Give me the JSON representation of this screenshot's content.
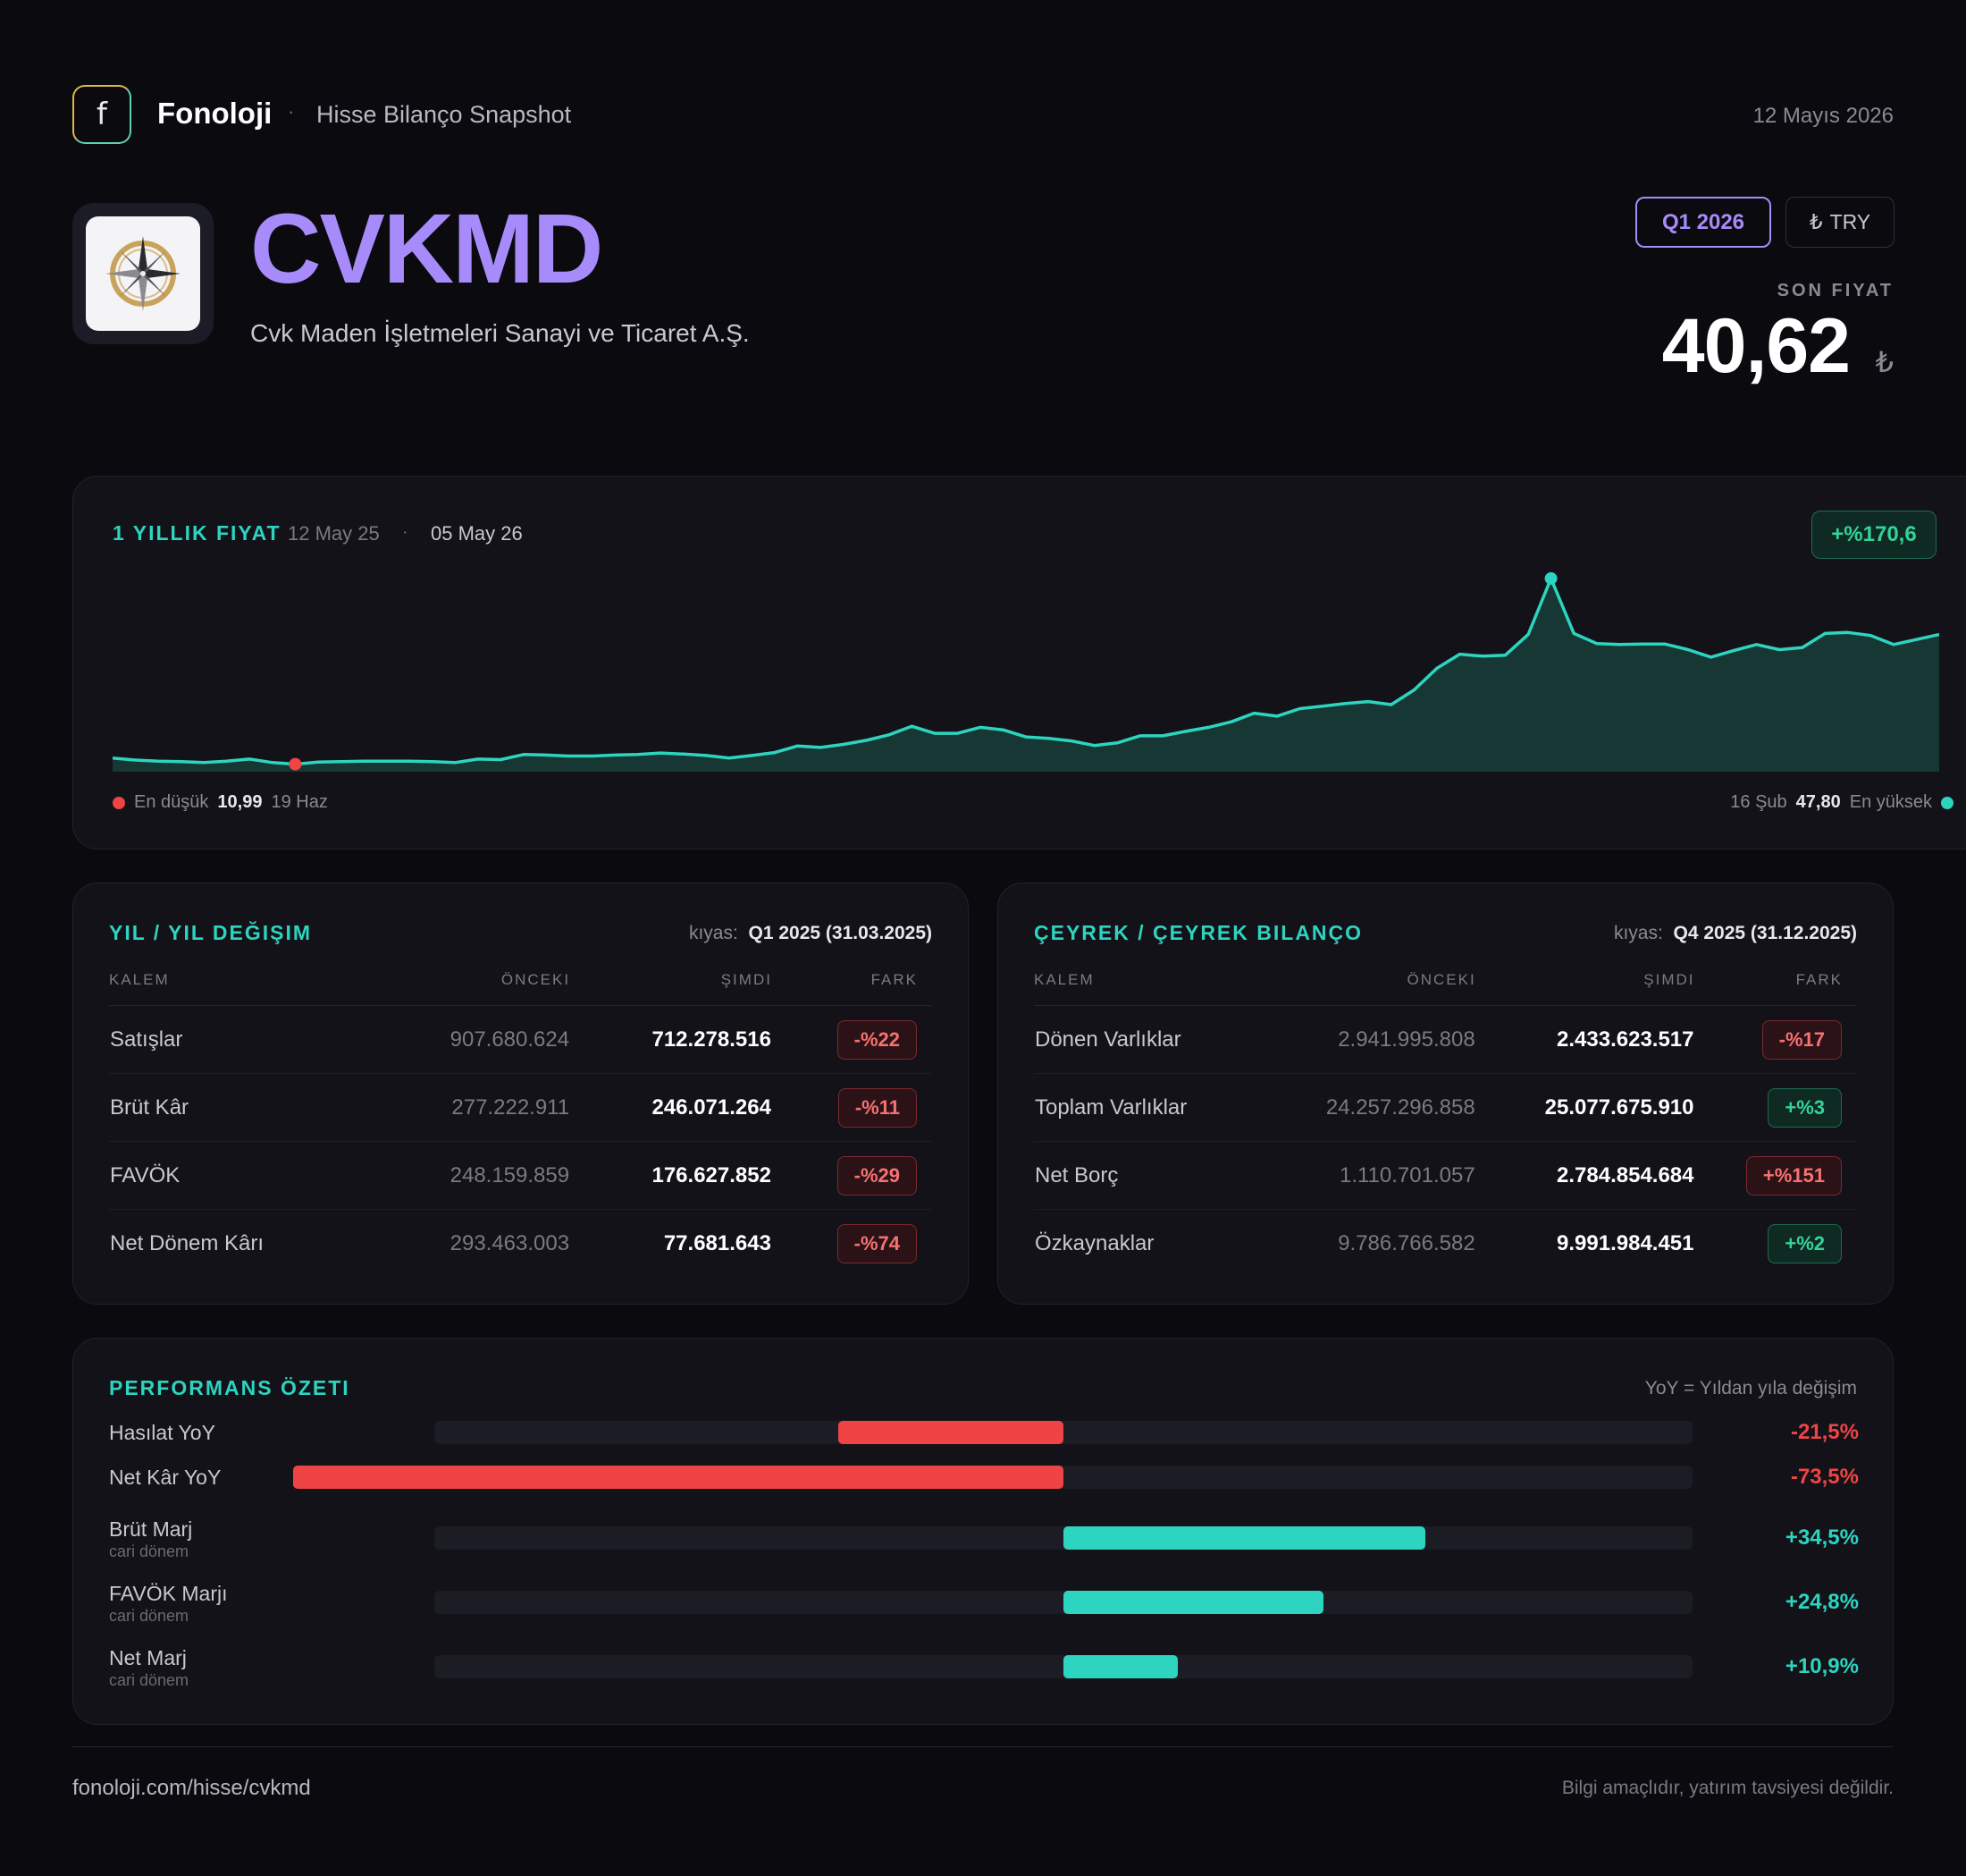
{
  "header": {
    "logo_letter": "f",
    "brand": "Fonoloji",
    "separator": "·",
    "subtitle": "Hisse Bilanço Snapshot",
    "date": "12 Mayıs 2026"
  },
  "stock": {
    "ticker": "CVKMD",
    "company": "Cvk Maden İşletmeleri Sanayi ve Ticaret A.Ş.",
    "period": "Q1 2026",
    "currency_symbol": "₺",
    "currency": "TRY",
    "price_label": "SON FIYAT",
    "price": "40,62",
    "price_unit": "₺"
  },
  "price_chart": {
    "title": "1 YILLIK FIYAT",
    "from": "12 May 25",
    "separator": "·",
    "to": "05 May 26",
    "change": "+%170,6",
    "low_label": "En düşük",
    "low_value": "10,99",
    "low_date": "19 Haz",
    "high_date": "16 Şub",
    "high_value": "47,80",
    "high_label": "En yüksek",
    "colors": {
      "line": "#2dd4bf",
      "fill": "#163733",
      "low": "#ef4444",
      "high": "#2dd4bf"
    }
  },
  "chart_data": {
    "type": "area",
    "title": "1 YILLIK FIYAT",
    "x_range": [
      "12 May 25",
      "05 May 26"
    ],
    "ylim": [
      9.5,
      48.5
    ],
    "values": [
      12.2,
      11.8,
      11.6,
      11.5,
      11.3,
      11.6,
      12.0,
      11.3,
      10.99,
      11.4,
      11.5,
      11.6,
      11.6,
      11.6,
      11.5,
      11.3,
      12.0,
      11.9,
      12.9,
      12.8,
      12.6,
      12.6,
      12.8,
      12.9,
      13.2,
      13.0,
      12.7,
      12.2,
      12.7,
      13.3,
      14.6,
      14.3,
      14.9,
      15.7,
      16.8,
      18.5,
      17.1,
      17.1,
      18.3,
      17.8,
      16.4,
      16.1,
      15.6,
      14.7,
      15.2,
      16.6,
      16.6,
      17.5,
      18.3,
      19.4,
      21.1,
      20.5,
      22.0,
      22.5,
      23.0,
      23.4,
      22.8,
      25.7,
      30.0,
      32.8,
      32.4,
      32.6,
      36.7,
      47.8,
      36.9,
      34.9,
      34.7,
      34.8,
      34.8,
      33.7,
      32.2,
      33.5,
      34.7,
      33.7,
      34.1,
      36.9,
      37.1,
      36.5,
      34.7,
      35.7,
      36.7
    ],
    "low": {
      "value": 10.99,
      "date": "19 Haz",
      "index": 8
    },
    "high": {
      "value": 47.8,
      "date": "16 Şub",
      "index": 63
    },
    "grid": false
  },
  "yoy": {
    "title": "YIL / YIL DEĞIŞIM",
    "ref_label": "kıyas:",
    "ref_value": "Q1 2025 (31.03.2025)",
    "headers": [
      "KALEM",
      "ÖNCEKI",
      "ŞIMDI",
      "FARK"
    ],
    "rows": [
      {
        "item": "Satışlar",
        "prev": "907.680.624",
        "now": "712.278.516",
        "diff": "-%22",
        "sign": "neg"
      },
      {
        "item": "Brüt Kâr",
        "prev": "277.222.911",
        "now": "246.071.264",
        "diff": "-%11",
        "sign": "neg"
      },
      {
        "item": "FAVÖK",
        "prev": "248.159.859",
        "now": "176.627.852",
        "diff": "-%29",
        "sign": "neg"
      },
      {
        "item": "Net Dönem Kârı",
        "prev": "293.463.003",
        "now": "77.681.643",
        "diff": "-%74",
        "sign": "neg"
      }
    ]
  },
  "qoq": {
    "title": "ÇEYREK / ÇEYREK BILANÇO",
    "ref_label": "kıyas:",
    "ref_value": "Q4 2025 (31.12.2025)",
    "headers": [
      "KALEM",
      "ÖNCEKI",
      "ŞIMDI",
      "FARK"
    ],
    "rows": [
      {
        "item": "Dönen Varlıklar",
        "prev": "2.941.995.808",
        "now": "2.433.623.517",
        "diff": "-%17",
        "sign": "neg"
      },
      {
        "item": "Toplam Varlıklar",
        "prev": "24.257.296.858",
        "now": "25.077.675.910",
        "diff": "+%3",
        "sign": "pos"
      },
      {
        "item": "Net Borç",
        "prev": "1.110.701.057",
        "now": "2.784.854.684",
        "diff": "+%151",
        "sign": "neg"
      },
      {
        "item": "Özkaynaklar",
        "prev": "9.786.766.582",
        "now": "9.991.984.451",
        "diff": "+%2",
        "sign": "pos"
      }
    ]
  },
  "performance": {
    "title": "PERFORMANS ÖZETI",
    "note": "YoY = Yıldan yıla değişim",
    "scale_max": 120,
    "colors": {
      "neg": "#ef4444",
      "pos": "#2dd4bf"
    },
    "rows": [
      {
        "label": "Hasılat YoY",
        "sub": "",
        "value": -21.5,
        "display": "-21,5%"
      },
      {
        "label": "Net Kâr YoY",
        "sub": "",
        "value": -73.5,
        "display": "-73,5%"
      },
      {
        "label": "Brüt Marj",
        "sub": "cari dönem",
        "value": 34.5,
        "display": "+34,5%"
      },
      {
        "label": "FAVÖK Marjı",
        "sub": "cari dönem",
        "value": 24.8,
        "display": "+24,8%"
      },
      {
        "label": "Net Marj",
        "sub": "cari dönem",
        "value": 10.9,
        "display": "+10,9%"
      }
    ]
  },
  "footer": {
    "url": "fonoloji.com/hisse/cvkmd",
    "disclaimer": "Bilgi amaçlıdır, yatırım tavsiyesi değildir."
  }
}
